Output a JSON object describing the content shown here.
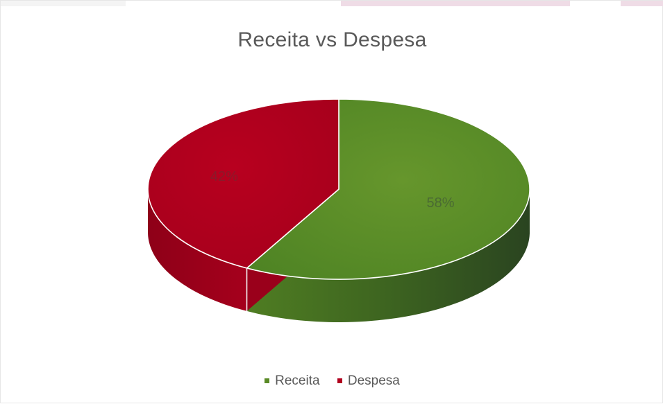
{
  "chart_data": {
    "type": "pie",
    "title": "Receita vs Despesa",
    "categories": [
      "Receita",
      "Despesa"
    ],
    "values": [
      58,
      42
    ],
    "data_labels": [
      "58%",
      "42%"
    ],
    "colors": [
      "#5a8a26",
      "#b1001e"
    ],
    "style": "3d",
    "legend": "bottom"
  }
}
